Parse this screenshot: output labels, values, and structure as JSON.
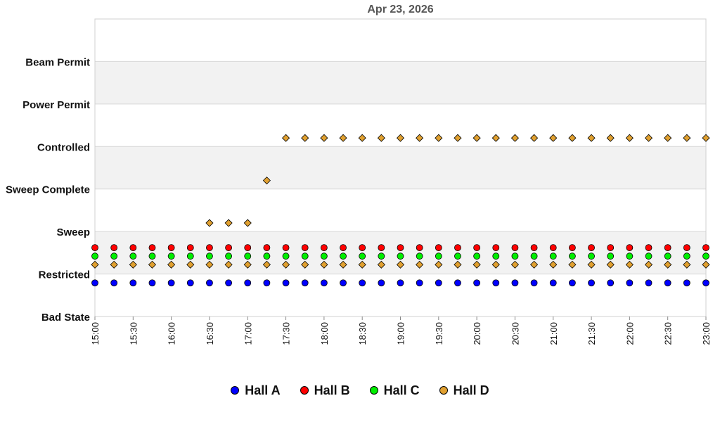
{
  "chart_data": {
    "type": "scatter",
    "title": "Apr 23, 2026",
    "xlabel": "",
    "ylabel": "",
    "y_categories": [
      "Bad State",
      "Restricted",
      "Sweep",
      "Sweep Complete",
      "Controlled",
      "Power Permit",
      "Beam Permit"
    ],
    "x_ticks": [
      "15:00",
      "15:30",
      "16:00",
      "16:30",
      "17:00",
      "17:30",
      "18:00",
      "18:30",
      "19:00",
      "19:30",
      "20:00",
      "20:30",
      "21:00",
      "21:30",
      "22:00",
      "22:30",
      "23:00"
    ],
    "xlim": [
      "15:00",
      "23:00"
    ],
    "x_step": "00:15",
    "bands": "alternating white and light gray",
    "grid": true,
    "legend_position": "bottom",
    "series": [
      {
        "name": "Hall A",
        "color": "#0000ff",
        "marker": "circle",
        "points": [
          {
            "from": "15:00",
            "to": "23:00",
            "state": "Restricted",
            "level": 0.79
          }
        ]
      },
      {
        "name": "Hall B",
        "color": "#ff0000",
        "marker": "circle",
        "points": [
          {
            "from": "15:00",
            "to": "23:00",
            "state": "Restricted",
            "level": 1.62
          }
        ]
      },
      {
        "name": "Hall C",
        "color": "#00ee00",
        "marker": "circle",
        "points": [
          {
            "from": "15:00",
            "to": "23:00",
            "state": "Restricted",
            "level": 1.42
          }
        ]
      },
      {
        "name": "Hall D",
        "color": "#e0a030",
        "marker": "diamond",
        "points": [
          {
            "from": "15:00",
            "to": "23:00",
            "state": "Restricted",
            "level": 1.22
          },
          {
            "from": "16:30",
            "to": "17:00",
            "state": "Sweep",
            "level": 2.2
          },
          {
            "from": "17:15",
            "to": "17:15",
            "state": "Sweep Complete",
            "level": 3.2
          },
          {
            "from": "17:30",
            "to": "23:00",
            "state": "Controlled",
            "level": 4.2
          }
        ]
      }
    ]
  }
}
